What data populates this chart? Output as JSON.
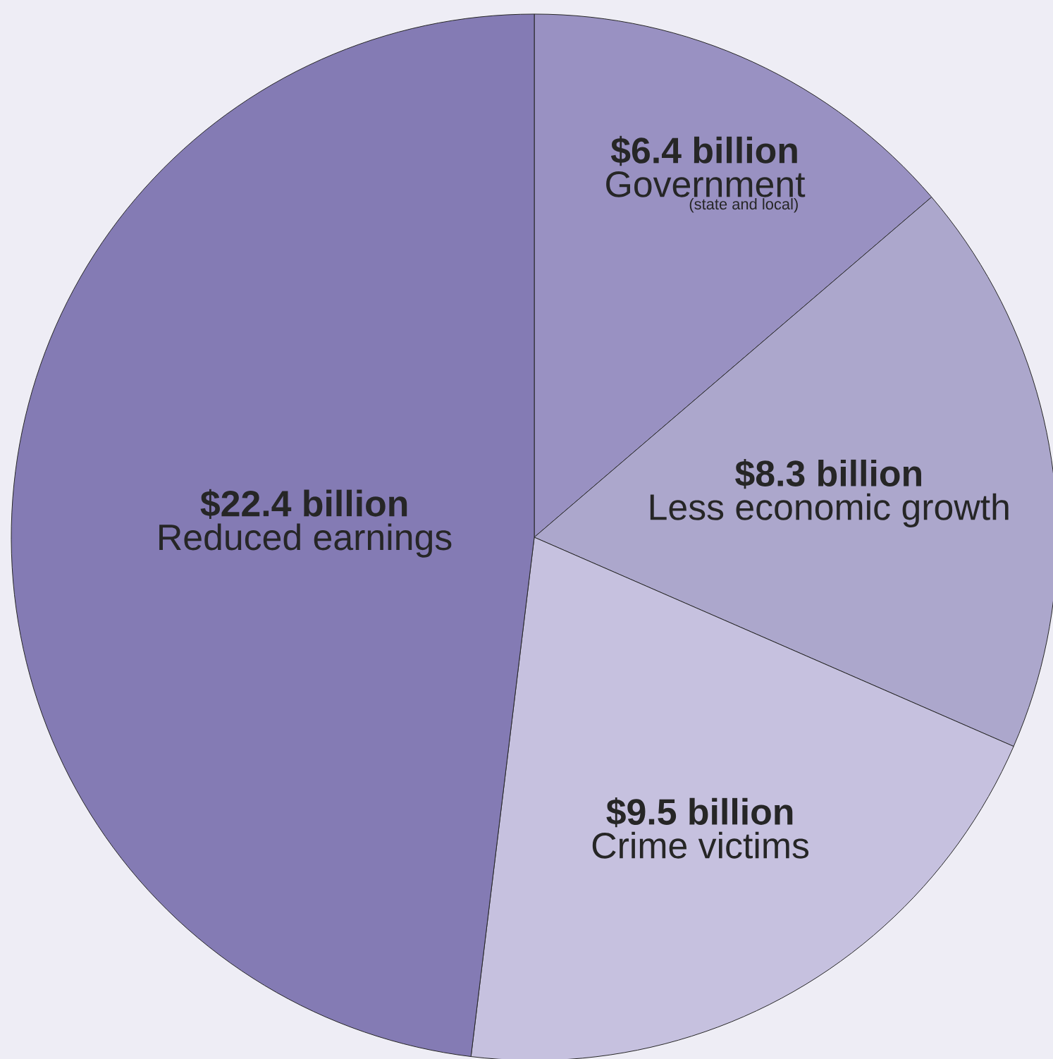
{
  "chart_data": {
    "type": "pie",
    "categories": [
      "Government",
      "Less economic growth",
      "Crime victims",
      "Reduced earnings"
    ],
    "values": [
      6.4,
      8.3,
      9.5,
      22.4
    ],
    "colors": [
      "#9991c2",
      "#aca7cc",
      "#c6c1df",
      "#847bb4"
    ],
    "value_labels": [
      "$6.4 billion",
      "$8.3 billion",
      "$9.5 billion",
      "$22.4 billion"
    ],
    "annotations": [
      "(state and local)"
    ]
  }
}
